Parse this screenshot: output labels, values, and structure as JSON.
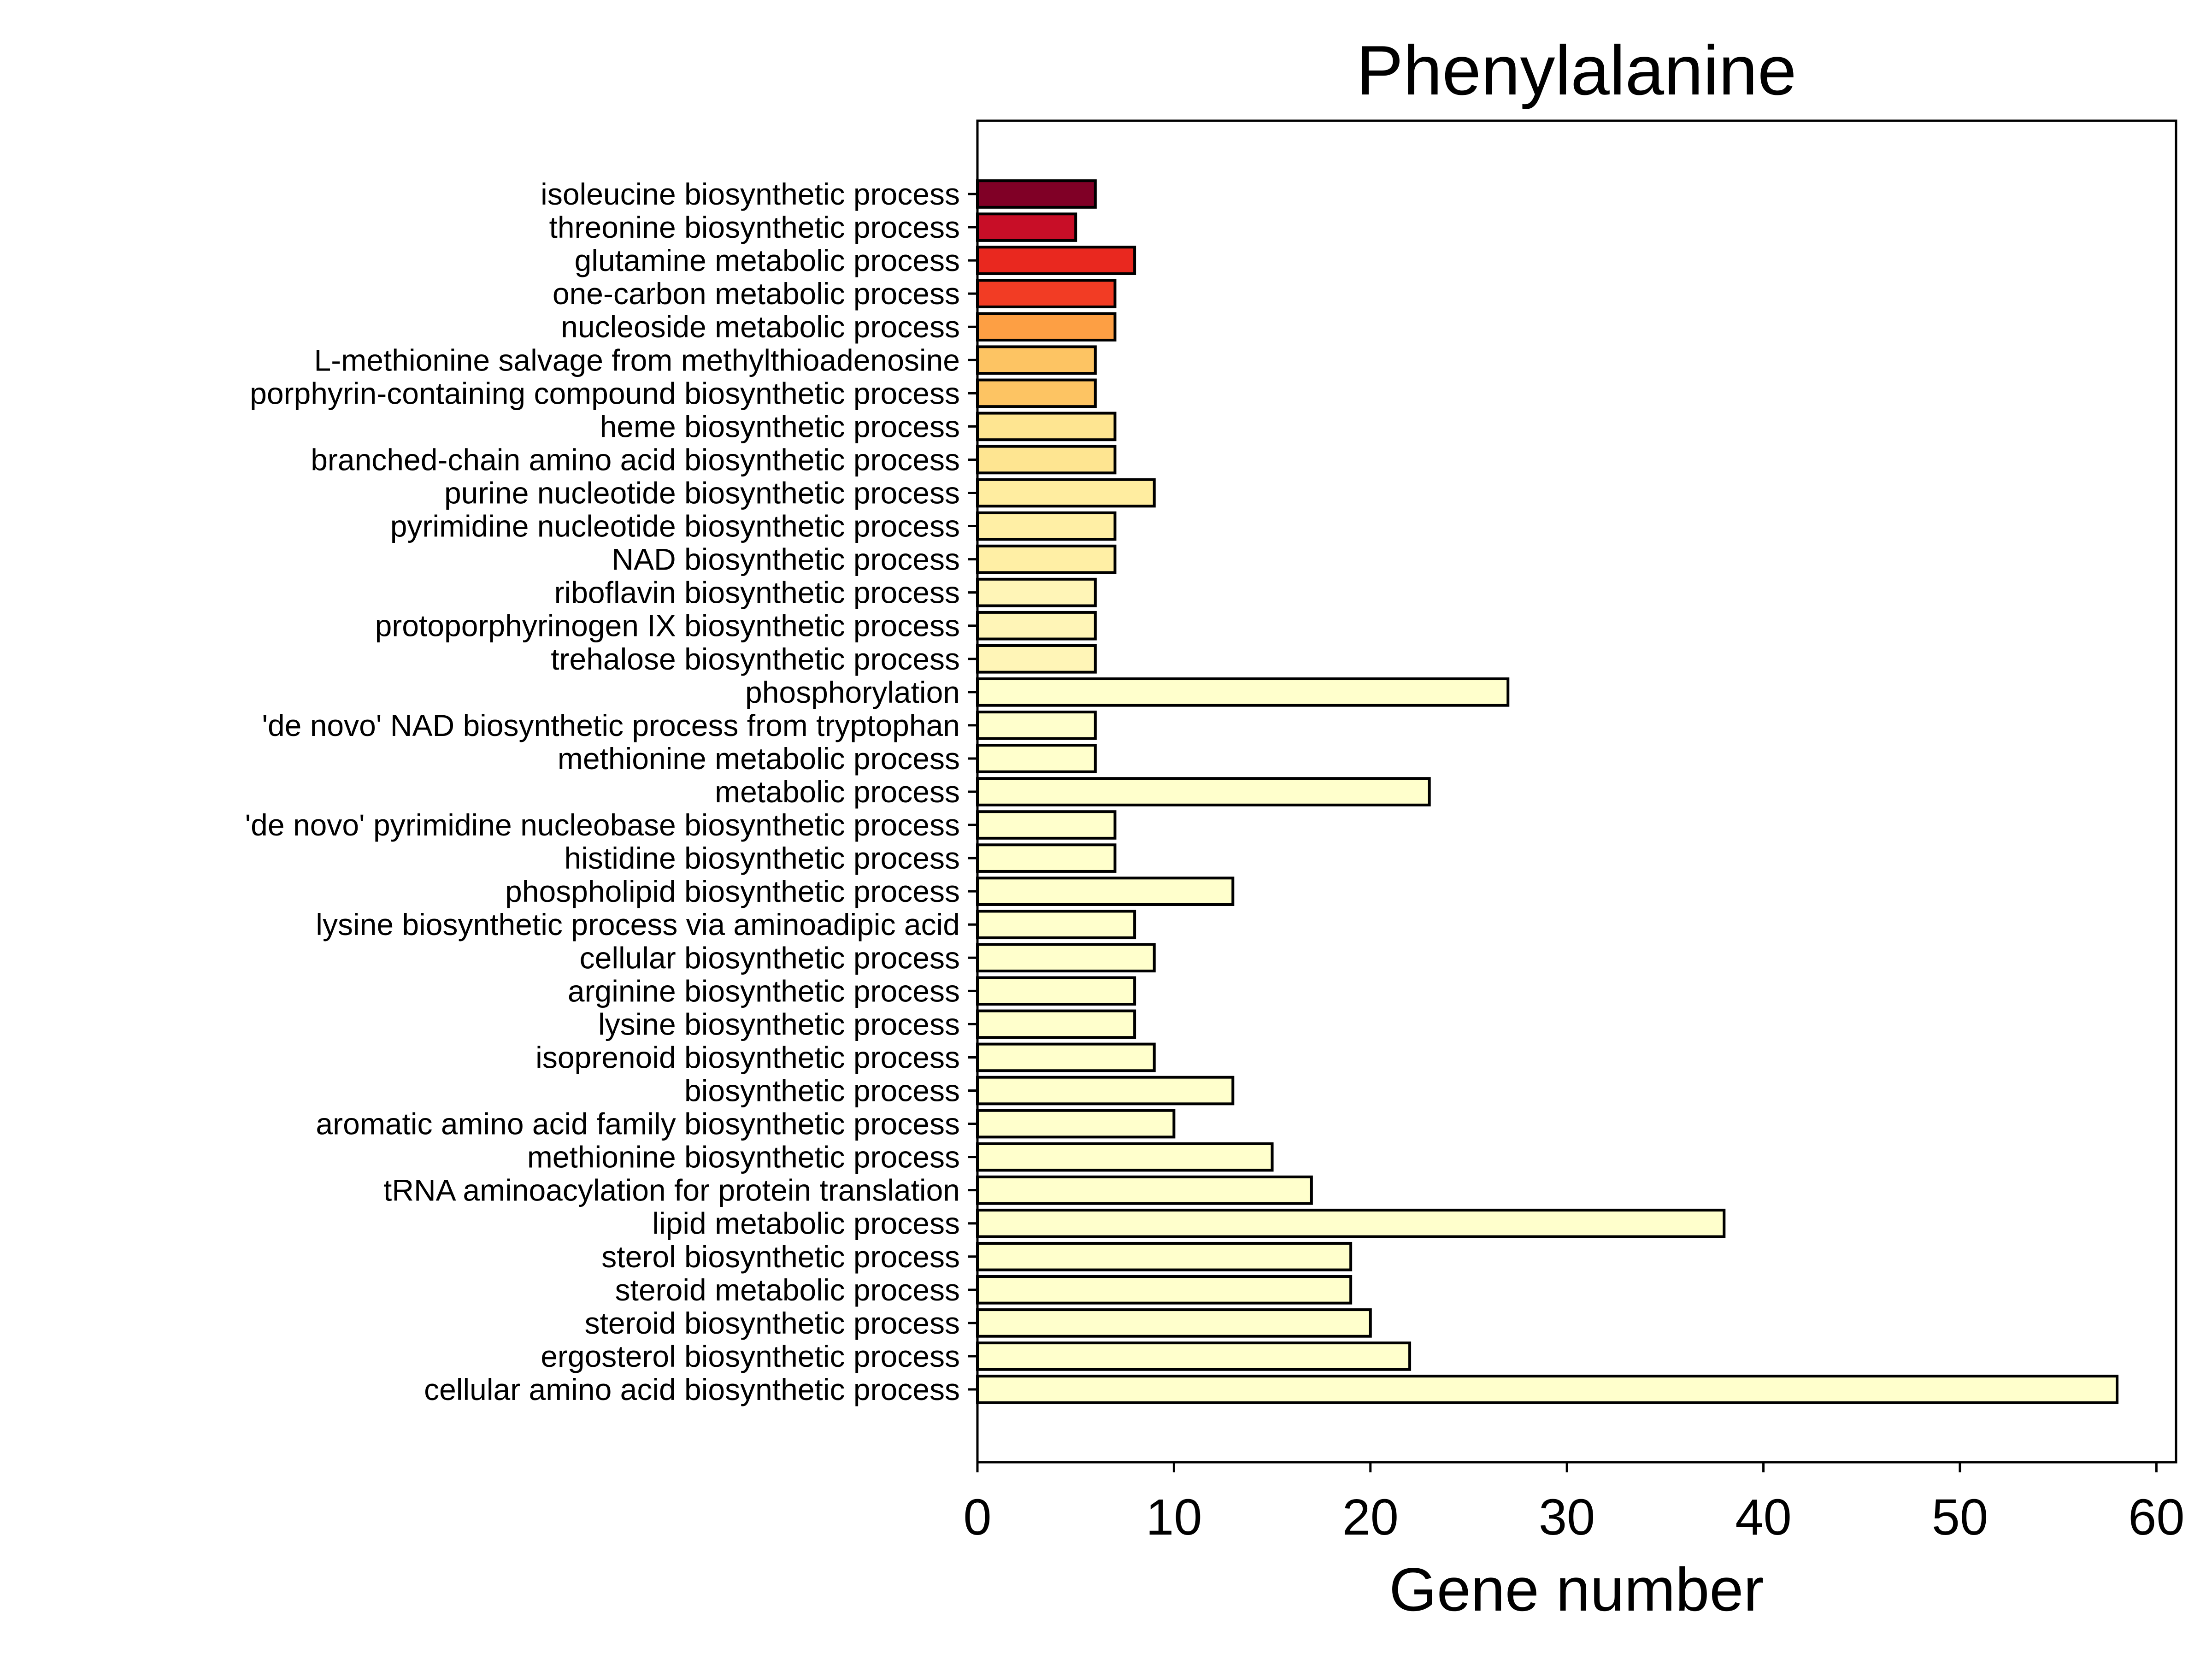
{
  "chart_data": {
    "type": "bar",
    "orientation": "horizontal",
    "title": "Phenylalanine",
    "xlabel": "Gene number",
    "ylabel": "",
    "xlim": [
      0,
      61
    ],
    "xticks": [
      0,
      10,
      20,
      30,
      40,
      50,
      60
    ],
    "grid": false,
    "categories": [
      "isoleucine biosynthetic process",
      "threonine biosynthetic process",
      "glutamine metabolic process",
      "one-carbon metabolic process",
      "nucleoside metabolic process",
      "L-methionine salvage from methylthioadenosine",
      "porphyrin-containing compound biosynthetic process",
      "heme biosynthetic process",
      "branched-chain amino acid biosynthetic process",
      "purine nucleotide biosynthetic process",
      "pyrimidine nucleotide biosynthetic process",
      "NAD biosynthetic process",
      "riboflavin biosynthetic process",
      "protoporphyrinogen IX biosynthetic process",
      "trehalose biosynthetic process",
      "phosphorylation",
      "'de novo' NAD biosynthetic process from tryptophan",
      "methionine metabolic process",
      "metabolic process",
      "'de novo' pyrimidine nucleobase biosynthetic process",
      "histidine biosynthetic process",
      "phospholipid biosynthetic process",
      "lysine biosynthetic process via aminoadipic acid",
      "cellular biosynthetic process",
      "arginine biosynthetic process",
      "lysine biosynthetic process",
      "isoprenoid biosynthetic process",
      "biosynthetic process",
      "aromatic amino acid family biosynthetic process",
      "methionine biosynthetic process",
      "tRNA aminoacylation for protein translation",
      "lipid metabolic process",
      "sterol biosynthetic process",
      "steroid metabolic process",
      "steroid biosynthetic process",
      "ergosterol biosynthetic process",
      "cellular amino acid biosynthetic process"
    ],
    "values": [
      6,
      5,
      8,
      7,
      7,
      6,
      6,
      7,
      7,
      9,
      7,
      7,
      6,
      6,
      6,
      27,
      6,
      6,
      23,
      7,
      7,
      13,
      8,
      9,
      8,
      8,
      9,
      13,
      10,
      15,
      17,
      38,
      19,
      19,
      20,
      22,
      58
    ],
    "colors": [
      "#800026",
      "#c80e27",
      "#e9281f",
      "#f23c24",
      "#fd9f44",
      "#fdc463",
      "#fdc463",
      "#fee591",
      "#fee591",
      "#ffeda0",
      "#ffefa5",
      "#ffefa5",
      "#fff5b7",
      "#fff5b7",
      "#fff5b7",
      "#ffffcc",
      "#ffffcc",
      "#ffffcc",
      "#ffffcc",
      "#ffffcc",
      "#ffffcc",
      "#ffffcc",
      "#ffffcc",
      "#ffffcc",
      "#ffffcc",
      "#ffffcc",
      "#ffffcc",
      "#ffffcc",
      "#ffffcc",
      "#ffffcc",
      "#ffffcc",
      "#ffffcc",
      "#ffffcc",
      "#ffffcc",
      "#ffffcc",
      "#ffffcc",
      "#ffffcc"
    ]
  }
}
